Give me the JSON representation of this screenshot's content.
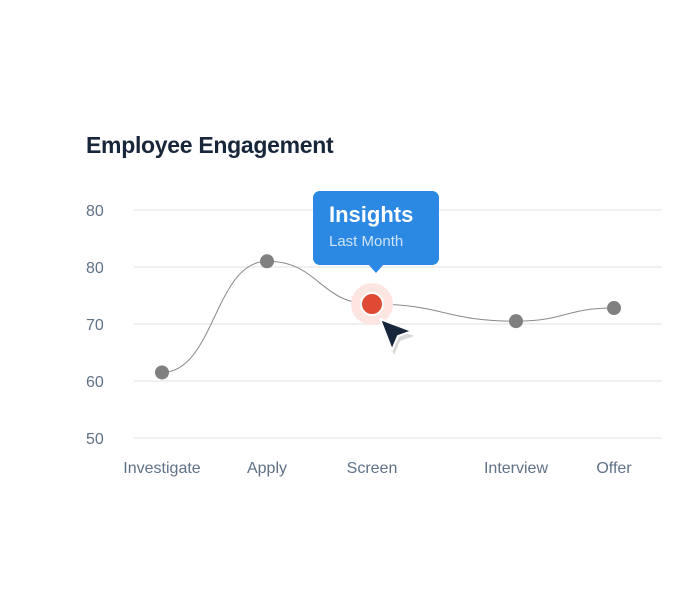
{
  "chart_data": {
    "type": "line",
    "title": "Employee Engagement",
    "categories": [
      "Investigate",
      "Apply",
      "Screen",
      "Interview",
      "Offer"
    ],
    "values": [
      61.5,
      81,
      73.5,
      70.5,
      72.8
    ],
    "y_tick_labels": [
      "80",
      "80",
      "70",
      "60",
      "50"
    ],
    "ylim": [
      50,
      90
    ],
    "grid": true,
    "highlighted_index": 2,
    "tooltip": {
      "title": "Insights",
      "subtitle": "Last Month"
    },
    "colors": {
      "line": "#8a8a8a",
      "point": "#808080",
      "highlight": "#e04a35",
      "tooltip": "#2b88e3",
      "cursor": "#17263a"
    }
  }
}
